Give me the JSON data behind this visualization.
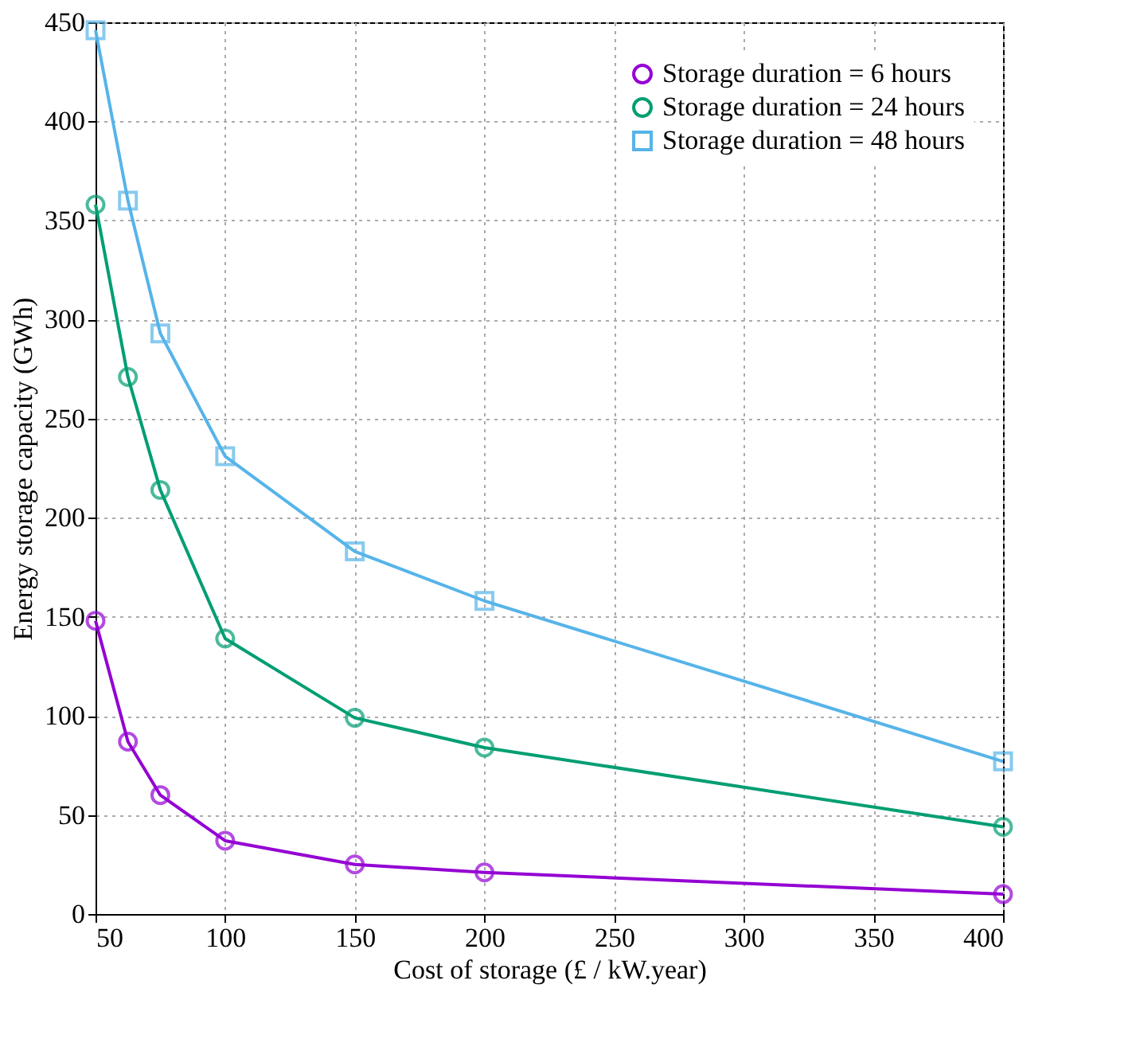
{
  "chart_data": {
    "type": "line",
    "xlabel": "Cost of storage (£ / kW.year)",
    "ylabel": "Energy storage capacity (GWh)",
    "x": [
      50,
      62.5,
      75,
      100,
      150,
      200,
      400
    ],
    "series": [
      {
        "name": "Storage duration =   6 hours",
        "color": "#9400d3",
        "marker": "circle",
        "values": [
          148,
          87,
          60,
          37,
          25,
          21,
          10
        ]
      },
      {
        "name": "Storage duration = 24 hours",
        "color": "#009e73",
        "marker": "circle",
        "values": [
          358,
          271,
          214,
          139,
          99,
          84,
          44
        ]
      },
      {
        "name": "Storage duration = 48 hours",
        "color": "#56b4e9",
        "marker": "square",
        "values": [
          446,
          360,
          293,
          231,
          183,
          158,
          77
        ]
      }
    ],
    "xlim": [
      50,
      400
    ],
    "xticks": [
      50,
      100,
      150,
      200,
      250,
      300,
      350,
      400
    ],
    "ylim": [
      0,
      450
    ],
    "yticks": [
      0,
      50,
      100,
      150,
      200,
      250,
      300,
      350,
      400,
      450
    ],
    "grid": true,
    "legend": "top right",
    "line_style": "solid"
  }
}
